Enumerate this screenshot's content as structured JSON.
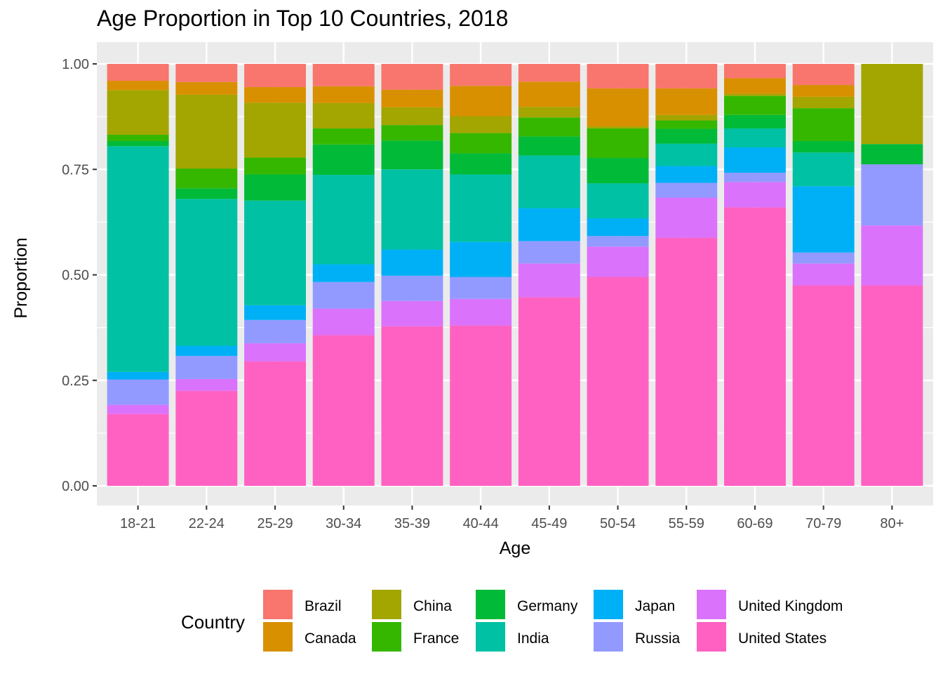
{
  "chart_data": {
    "type": "bar",
    "stacked": true,
    "title": "Age Proportion in Top 10 Countries, 2018",
    "xlabel": "Age",
    "ylabel": "Proportion",
    "ylim": [
      0,
      1
    ],
    "yticks": [
      "0.00",
      "0.25",
      "0.50",
      "0.75",
      "1.00"
    ],
    "ytick_values": [
      0,
      0.25,
      0.5,
      0.75,
      1.0
    ],
    "grid": true,
    "legend_title": "Country",
    "legend_position": "bottom",
    "categories": [
      "18-21",
      "22-24",
      "25-29",
      "30-34",
      "35-39",
      "40-44",
      "45-49",
      "50-54",
      "55-59",
      "60-69",
      "70-79",
      "80+"
    ],
    "series": [
      {
        "name": "United States",
        "color": "#FF61C3",
        "values": [
          0.17,
          0.225,
          0.295,
          0.357,
          0.378,
          0.38,
          0.447,
          0.495,
          0.588,
          0.66,
          0.475,
          0.475
        ]
      },
      {
        "name": "United Kingdom",
        "color": "#DB72FB",
        "values": [
          0.022,
          0.028,
          0.043,
          0.063,
          0.06,
          0.063,
          0.08,
          0.072,
          0.095,
          0.06,
          0.052,
          0.142
        ]
      },
      {
        "name": "Russia",
        "color": "#939AFF",
        "values": [
          0.06,
          0.055,
          0.055,
          0.063,
          0.06,
          0.052,
          0.053,
          0.025,
          0.035,
          0.022,
          0.026,
          0.145
        ]
      },
      {
        "name": "Japan",
        "color": "#00B0F6",
        "values": [
          0.018,
          0.024,
          0.035,
          0.042,
          0.062,
          0.083,
          0.078,
          0.042,
          0.04,
          0.06,
          0.157,
          0
        ]
      },
      {
        "name": "India",
        "color": "#00C1A3",
        "values": [
          0.535,
          0.348,
          0.248,
          0.212,
          0.19,
          0.16,
          0.125,
          0.083,
          0.053,
          0.045,
          0.08,
          0
        ]
      },
      {
        "name": "Germany",
        "color": "#00BA38",
        "values": [
          0.012,
          0.025,
          0.062,
          0.072,
          0.068,
          0.05,
          0.045,
          0.06,
          0.035,
          0.032,
          0.027,
          0.048
        ]
      },
      {
        "name": "France",
        "color": "#35B700",
        "values": [
          0.015,
          0.047,
          0.04,
          0.038,
          0.037,
          0.048,
          0.045,
          0.07,
          0.02,
          0.045,
          0.078,
          0
        ]
      },
      {
        "name": "China",
        "color": "#A3A500",
        "values": [
          0.106,
          0.175,
          0.13,
          0.06,
          0.042,
          0.04,
          0.025,
          0.005,
          0.013,
          0.005,
          0.027,
          0.19
        ]
      },
      {
        "name": "Canada",
        "color": "#D89000",
        "values": [
          0.022,
          0.03,
          0.037,
          0.04,
          0.042,
          0.072,
          0.06,
          0.09,
          0.063,
          0.037,
          0.028,
          0
        ]
      },
      {
        "name": "Brazil",
        "color": "#F8766D",
        "values": [
          0.04,
          0.043,
          0.055,
          0.053,
          0.061,
          0.052,
          0.042,
          0.058,
          0.058,
          0.034,
          0.05,
          0
        ]
      }
    ],
    "legend_order": [
      "Brazil",
      "Canada",
      "China",
      "France",
      "Germany",
      "India",
      "Japan",
      "Russia",
      "United Kingdom",
      "United States"
    ],
    "panel_background": "#EBEBEB",
    "gridline_color": "#FFFFFF"
  }
}
